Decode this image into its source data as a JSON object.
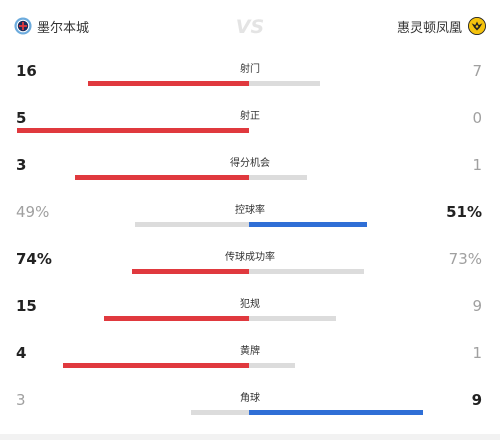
{
  "colors": {
    "home_bar": "#e0393e",
    "away_bar": "#2f6fd6",
    "muted_bar": "#dcdcdc",
    "track": "#e6e6e6"
  },
  "header": {
    "home_team": {
      "name": "墨尔本城",
      "icon": "melbourne-city-crest-icon"
    },
    "away_team": {
      "name": "惠灵顿凤凰",
      "icon": "wellington-phoenix-crest-icon"
    },
    "vs_icon": "vs-icon"
  },
  "stats": [
    {
      "label": "射门",
      "home": "16",
      "away": "7",
      "home_value": 16,
      "away_value": 7,
      "leader": "home"
    },
    {
      "label": "射正",
      "home": "5",
      "away": "0",
      "home_value": 5,
      "away_value": 0,
      "leader": "home"
    },
    {
      "label": "得分机会",
      "home": "3",
      "away": "1",
      "home_value": 3,
      "away_value": 1,
      "leader": "home"
    },
    {
      "label": "控球率",
      "home": "49%",
      "away": "51%",
      "home_value": 49,
      "away_value": 51,
      "leader": "away"
    },
    {
      "label": "传球成功率",
      "home": "74%",
      "away": "73%",
      "home_value": 74,
      "away_value": 73,
      "leader": "home"
    },
    {
      "label": "犯规",
      "home": "15",
      "away": "9",
      "home_value": 15,
      "away_value": 9,
      "leader": "home"
    },
    {
      "label": "黄牌",
      "home": "4",
      "away": "1",
      "home_value": 4,
      "away_value": 1,
      "leader": "home"
    },
    {
      "label": "角球",
      "home": "3",
      "away": "9",
      "home_value": 3,
      "away_value": 9,
      "leader": "away"
    }
  ]
}
